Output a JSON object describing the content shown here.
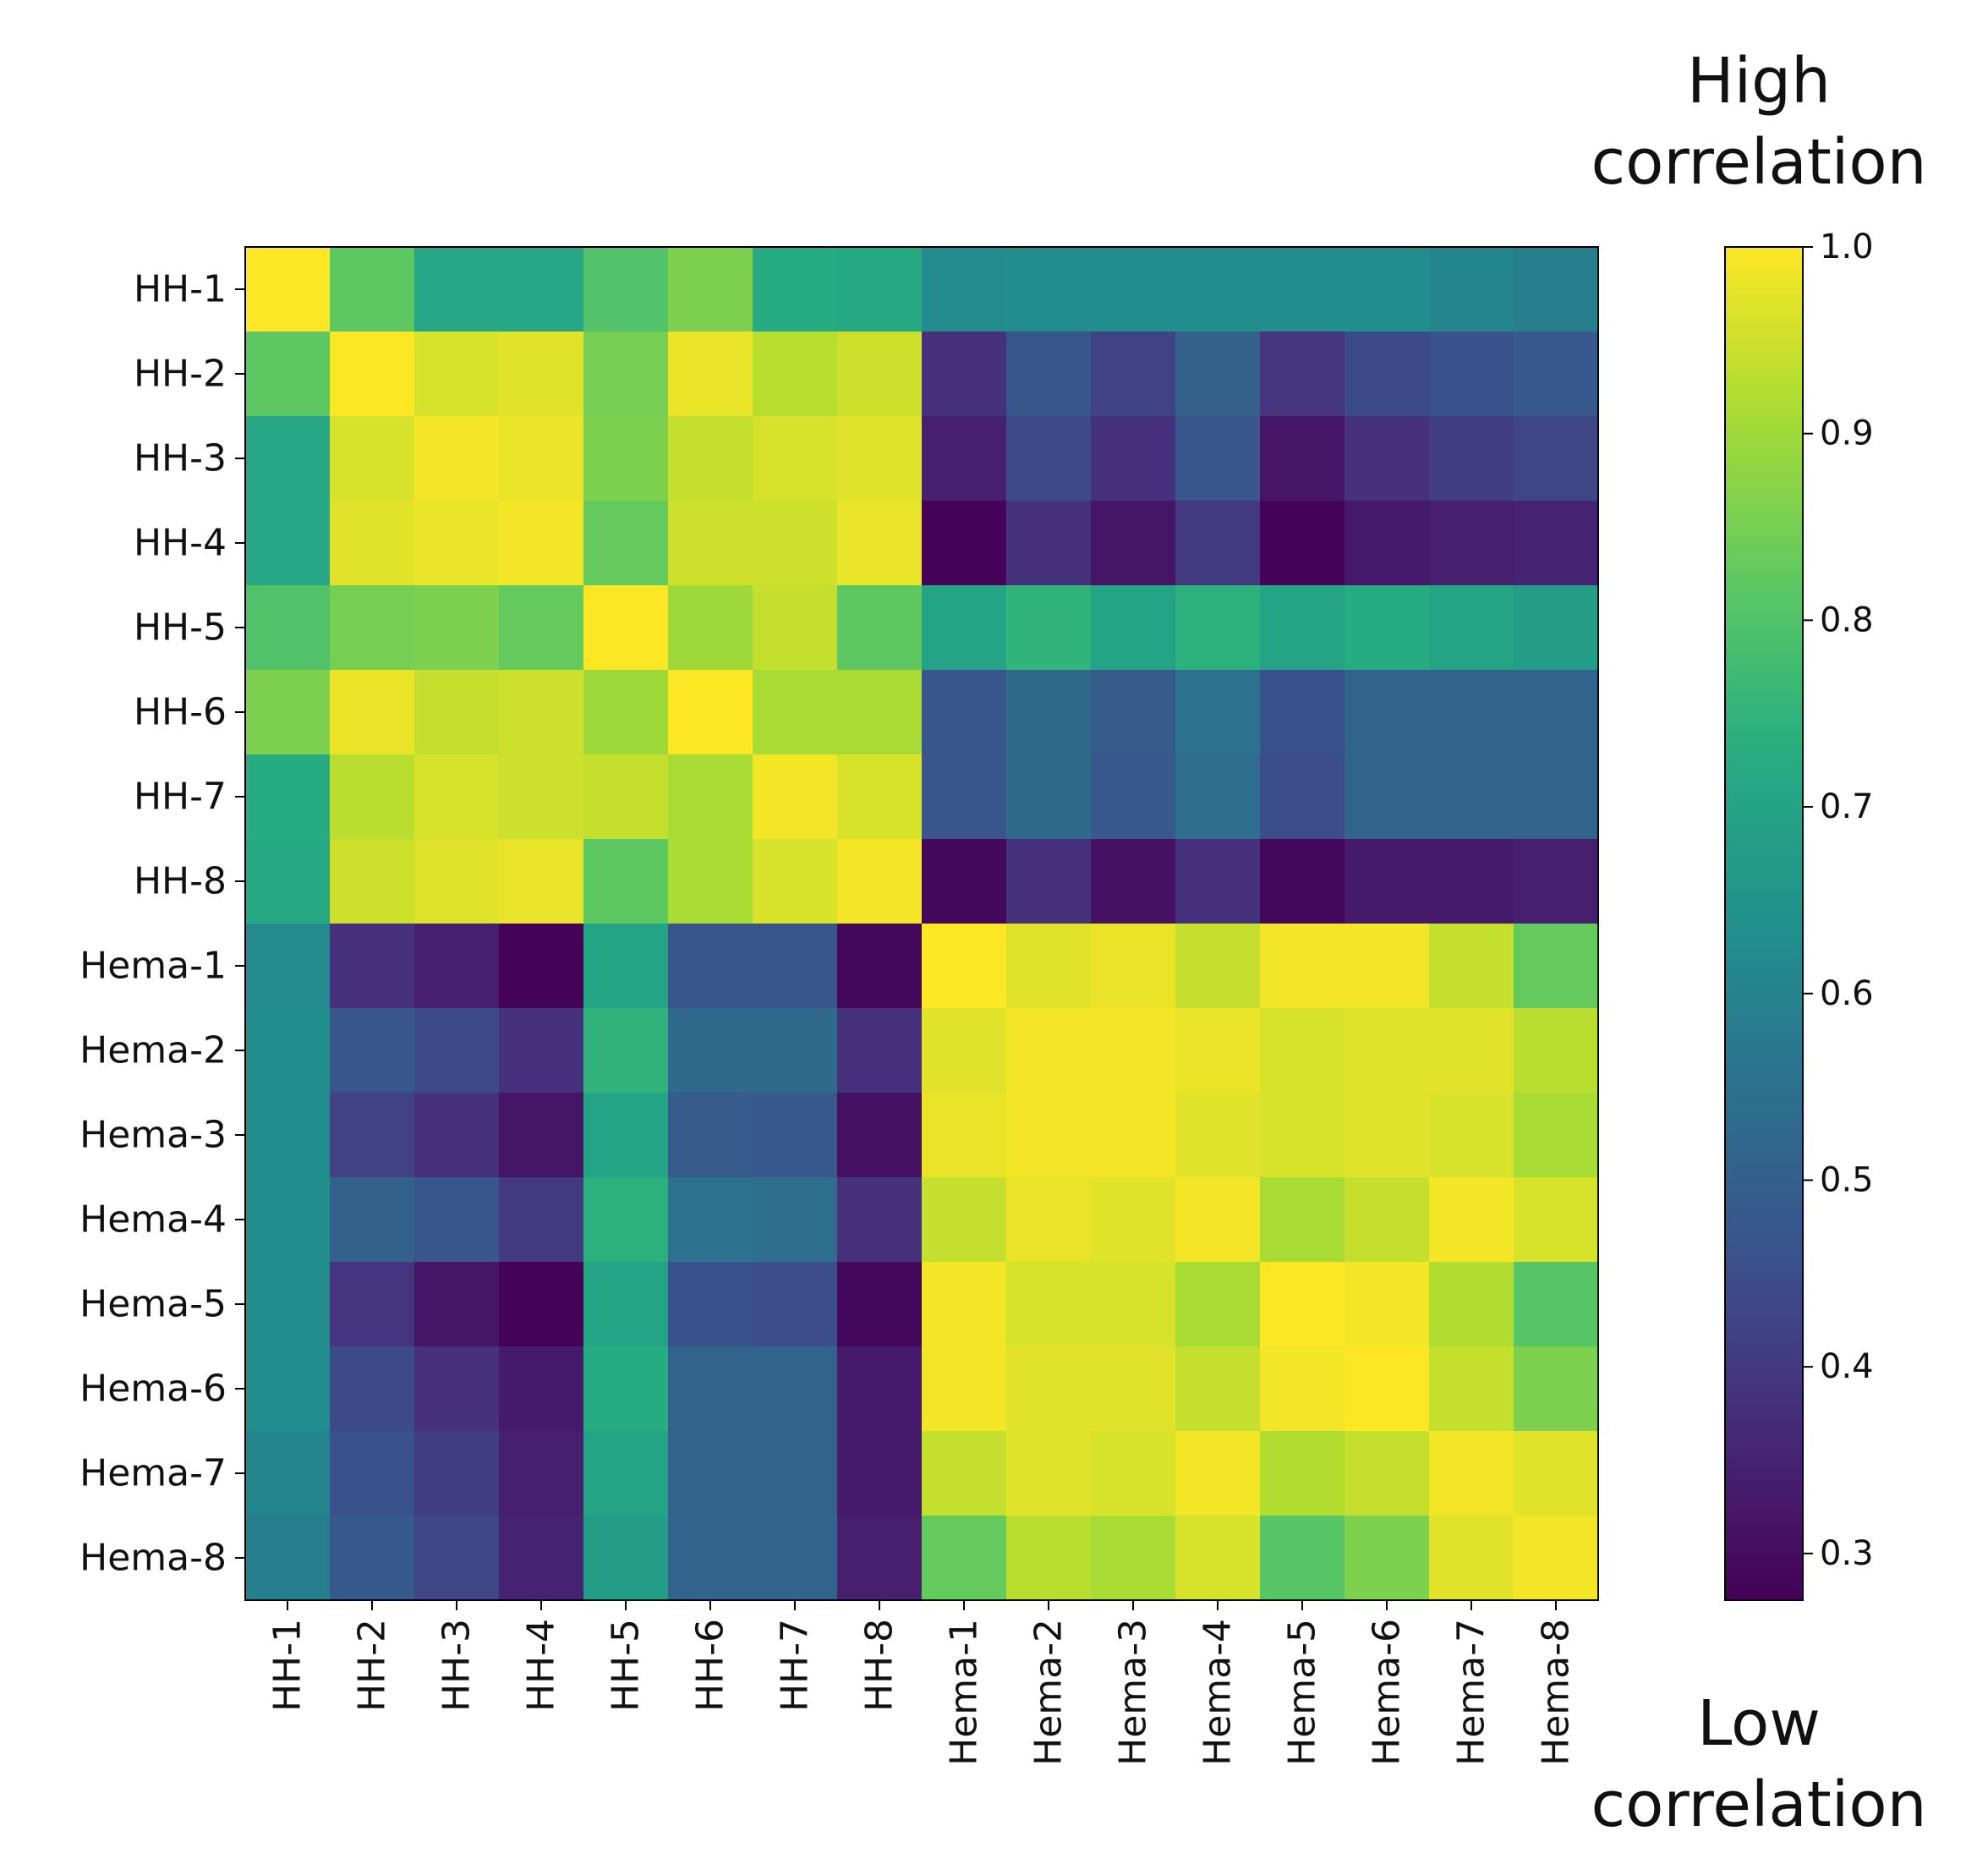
{
  "annotations": {
    "high_line1": "High",
    "high_line2": "correlation",
    "low_line1": "Low",
    "low_line2": "correlation"
  },
  "chart_data": {
    "type": "heatmap",
    "title": "",
    "xlabel": "",
    "ylabel": "",
    "colormap": "viridis",
    "vmin": 0.275,
    "vmax": 1.0,
    "colorbar_ticks": [
      1.0,
      0.9,
      0.8,
      0.7,
      0.6,
      0.5,
      0.4,
      0.3
    ],
    "colorbar_tick_labels": [
      "1.0",
      "0.9",
      "0.8",
      "0.7",
      "0.6",
      "0.5",
      "0.4",
      "0.3"
    ],
    "row_labels": [
      "HH-1",
      "HH-2",
      "HH-3",
      "HH-4",
      "HH-5",
      "HH-6",
      "HH-7",
      "HH-8",
      "Hema-1",
      "Hema-2",
      "Hema-3",
      "Hema-4",
      "Hema-5",
      "Hema-6",
      "Hema-7",
      "Hema-8"
    ],
    "col_labels": [
      "HH-1",
      "HH-2",
      "HH-3",
      "HH-4",
      "HH-5",
      "HH-6",
      "HH-7",
      "HH-8",
      "Hema-1",
      "Hema-2",
      "Hema-3",
      "Hema-4",
      "Hema-5",
      "Hema-6",
      "Hema-7",
      "Hema-8"
    ],
    "values": [
      [
        1.0,
        0.82,
        0.71,
        0.71,
        0.8,
        0.86,
        0.73,
        0.72,
        0.62,
        0.63,
        0.63,
        0.63,
        0.63,
        0.63,
        0.61,
        0.59
      ],
      [
        0.82,
        1.0,
        0.96,
        0.97,
        0.85,
        0.98,
        0.93,
        0.95,
        0.38,
        0.47,
        0.42,
        0.5,
        0.39,
        0.44,
        0.46,
        0.48
      ],
      [
        0.71,
        0.96,
        0.99,
        0.98,
        0.86,
        0.94,
        0.96,
        0.97,
        0.34,
        0.44,
        0.38,
        0.47,
        0.32,
        0.38,
        0.41,
        0.43
      ],
      [
        0.71,
        0.97,
        0.98,
        0.99,
        0.83,
        0.95,
        0.95,
        0.98,
        0.28,
        0.38,
        0.32,
        0.4,
        0.28,
        0.33,
        0.34,
        0.35
      ],
      [
        0.8,
        0.85,
        0.86,
        0.83,
        1.0,
        0.9,
        0.94,
        0.82,
        0.7,
        0.75,
        0.7,
        0.74,
        0.7,
        0.73,
        0.7,
        0.68
      ],
      [
        0.86,
        0.98,
        0.94,
        0.95,
        0.9,
        1.0,
        0.91,
        0.91,
        0.47,
        0.53,
        0.49,
        0.55,
        0.46,
        0.51,
        0.51,
        0.51
      ],
      [
        0.73,
        0.93,
        0.96,
        0.95,
        0.94,
        0.91,
        0.99,
        0.96,
        0.47,
        0.53,
        0.48,
        0.54,
        0.45,
        0.51,
        0.51,
        0.51
      ],
      [
        0.72,
        0.95,
        0.97,
        0.98,
        0.82,
        0.91,
        0.96,
        0.99,
        0.29,
        0.38,
        0.31,
        0.38,
        0.29,
        0.33,
        0.33,
        0.34
      ],
      [
        0.62,
        0.38,
        0.34,
        0.28,
        0.7,
        0.47,
        0.47,
        0.29,
        1.0,
        0.97,
        0.98,
        0.94,
        0.99,
        0.99,
        0.94,
        0.83
      ],
      [
        0.63,
        0.47,
        0.44,
        0.38,
        0.75,
        0.53,
        0.53,
        0.38,
        0.97,
        0.99,
        0.99,
        0.98,
        0.96,
        0.97,
        0.97,
        0.93
      ],
      [
        0.63,
        0.42,
        0.38,
        0.32,
        0.7,
        0.49,
        0.48,
        0.31,
        0.98,
        0.99,
        0.99,
        0.97,
        0.96,
        0.97,
        0.96,
        0.91
      ],
      [
        0.63,
        0.5,
        0.47,
        0.4,
        0.74,
        0.55,
        0.54,
        0.38,
        0.94,
        0.98,
        0.97,
        0.99,
        0.91,
        0.94,
        0.99,
        0.96
      ],
      [
        0.63,
        0.39,
        0.32,
        0.28,
        0.7,
        0.46,
        0.45,
        0.29,
        0.99,
        0.96,
        0.96,
        0.91,
        1.0,
        0.99,
        0.92,
        0.81
      ],
      [
        0.63,
        0.44,
        0.38,
        0.33,
        0.73,
        0.51,
        0.51,
        0.33,
        0.99,
        0.97,
        0.97,
        0.94,
        0.99,
        1.0,
        0.94,
        0.86
      ],
      [
        0.61,
        0.46,
        0.41,
        0.34,
        0.7,
        0.51,
        0.51,
        0.33,
        0.94,
        0.97,
        0.96,
        0.99,
        0.92,
        0.94,
        0.99,
        0.97
      ],
      [
        0.59,
        0.48,
        0.43,
        0.35,
        0.68,
        0.51,
        0.51,
        0.34,
        0.83,
        0.93,
        0.91,
        0.96,
        0.81,
        0.86,
        0.97,
        0.99
      ]
    ]
  }
}
